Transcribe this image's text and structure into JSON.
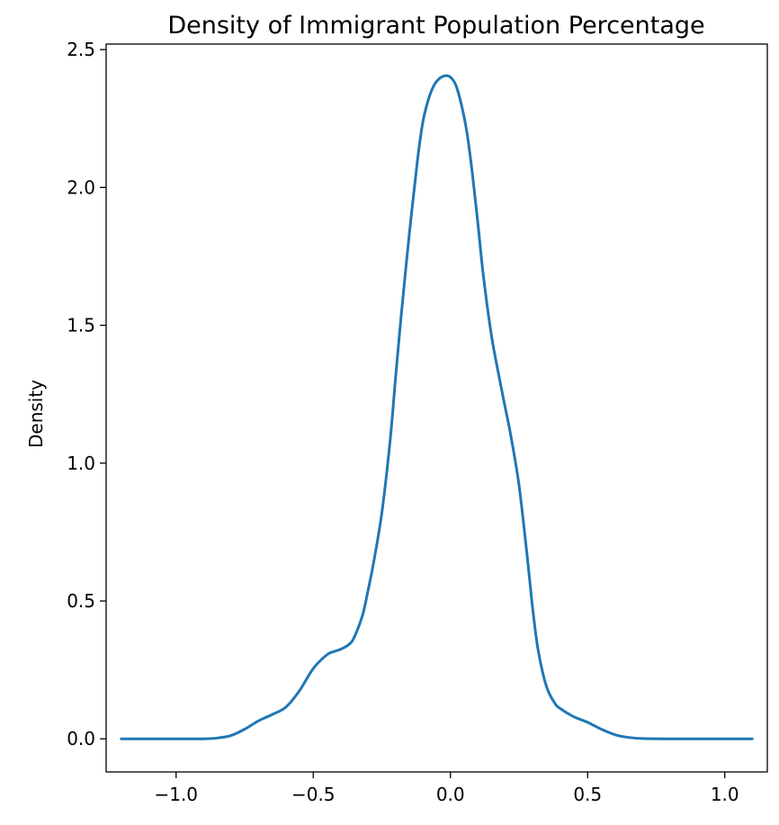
{
  "chart_data": {
    "type": "line",
    "title": "Density of Immigrant Population Percentage",
    "xlabel": "",
    "ylabel": "Density",
    "xlim": [
      -1.255,
      1.155
    ],
    "ylim": [
      -0.12,
      2.52
    ],
    "grid": false,
    "legend": "none",
    "xticks": [
      {
        "value": -1.0,
        "label": "−1.0"
      },
      {
        "value": -0.5,
        "label": "−0.5"
      },
      {
        "value": 0.0,
        "label": "0.0"
      },
      {
        "value": 0.5,
        "label": "0.5"
      },
      {
        "value": 1.0,
        "label": "1.0"
      }
    ],
    "yticks": [
      {
        "value": 0.0,
        "label": "0.0"
      },
      {
        "value": 0.5,
        "label": "0.5"
      },
      {
        "value": 1.0,
        "label": "1.0"
      },
      {
        "value": 1.5,
        "label": "1.5"
      },
      {
        "value": 2.0,
        "label": "2.0"
      },
      {
        "value": 2.5,
        "label": "2.5"
      }
    ],
    "series": [
      {
        "color": "#1f77b4",
        "x": [
          -1.2,
          -1.1,
          -1.0,
          -0.9,
          -0.85,
          -0.8,
          -0.75,
          -0.7,
          -0.65,
          -0.6,
          -0.55,
          -0.5,
          -0.45,
          -0.42,
          -0.4,
          -0.37,
          -0.35,
          -0.32,
          -0.3,
          -0.28,
          -0.25,
          -0.22,
          -0.2,
          -0.18,
          -0.15,
          -0.12,
          -0.1,
          -0.08,
          -0.06,
          -0.04,
          -0.02,
          0.0,
          0.02,
          0.04,
          0.06,
          0.08,
          0.1,
          0.12,
          0.15,
          0.18,
          0.2,
          0.22,
          0.25,
          0.28,
          0.3,
          0.32,
          0.35,
          0.38,
          0.4,
          0.45,
          0.5,
          0.55,
          0.6,
          0.65,
          0.7,
          0.8,
          0.9,
          1.0,
          1.1
        ],
        "y": [
          0.0,
          0.0,
          0.0,
          0.0,
          0.003,
          0.012,
          0.035,
          0.065,
          0.088,
          0.115,
          0.175,
          0.255,
          0.305,
          0.318,
          0.325,
          0.342,
          0.37,
          0.45,
          0.54,
          0.64,
          0.82,
          1.08,
          1.31,
          1.53,
          1.83,
          2.1,
          2.24,
          2.32,
          2.37,
          2.395,
          2.405,
          2.4,
          2.37,
          2.3,
          2.2,
          2.05,
          1.87,
          1.68,
          1.46,
          1.3,
          1.2,
          1.1,
          0.92,
          0.66,
          0.47,
          0.32,
          0.19,
          0.13,
          0.11,
          0.08,
          0.06,
          0.035,
          0.015,
          0.005,
          0.001,
          0.0,
          0.0,
          0.0,
          0.0
        ]
      }
    ]
  }
}
